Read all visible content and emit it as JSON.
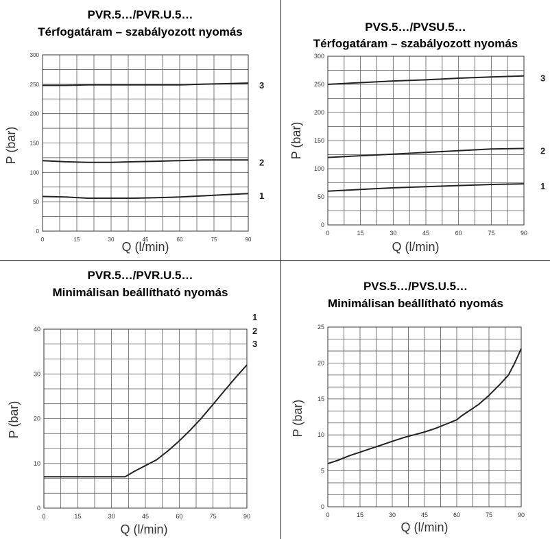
{
  "panels": [
    {
      "title_line1": "PVR.5…/PVR.U.5…",
      "title_line2": "Térfogatáram – szabályozott nyomás"
    },
    {
      "title_line1": "PVS.5…/PVSU.5…",
      "title_line2": "Térfogatáram – szabályozott nyomás"
    },
    {
      "title_line1": "PVR.5…/PVR.U.5…",
      "title_line2": "Minimálisan beállítható nyomás"
    },
    {
      "title_line1": "PVS.5…/PVS.U.5…",
      "title_line2": "Minimálisan beállítható nyomás"
    }
  ],
  "chart_data": [
    {
      "type": "line",
      "title": "PVR.5…/PVR.U.5… Térfogatáram – szabályozott nyomás",
      "xlabel": "Q (l/min)",
      "ylabel": "P (bar)",
      "xlim": [
        0,
        90
      ],
      "ylim": [
        0,
        300
      ],
      "xticks": [
        "0",
        "15",
        "30",
        "45",
        "60",
        "75",
        "90"
      ],
      "yticks": [
        "0",
        "50",
        "100",
        "150",
        "200",
        "250",
        "300"
      ],
      "grid": true,
      "series": [
        {
          "name": "1",
          "x": [
            0,
            10,
            20,
            30,
            40,
            50,
            60,
            70,
            80,
            90
          ],
          "values": [
            59,
            58,
            56,
            56,
            56,
            57,
            58,
            60,
            62,
            64
          ]
        },
        {
          "name": "2",
          "x": [
            0,
            10,
            20,
            30,
            40,
            50,
            60,
            70,
            80,
            90
          ],
          "values": [
            120,
            118,
            117,
            117,
            118,
            119,
            120,
            121,
            121,
            121
          ]
        },
        {
          "name": "3",
          "x": [
            0,
            10,
            20,
            30,
            40,
            50,
            60,
            70,
            80,
            90
          ],
          "values": [
            248,
            248,
            249,
            249,
            249,
            249,
            249,
            250,
            251,
            252
          ]
        }
      ]
    },
    {
      "type": "line",
      "title": "PVS.5…/PVSU.5… Térfogatáram – szabályozott nyomás",
      "xlabel": "Q (l/min)",
      "ylabel": "P (bar)",
      "xlim": [
        0,
        90
      ],
      "ylim": [
        0,
        300
      ],
      "xticks": [
        "0",
        "15",
        "30",
        "45",
        "60",
        "75",
        "90"
      ],
      "yticks": [
        "0",
        "50",
        "100",
        "150",
        "200",
        "250",
        "300"
      ],
      "grid": true,
      "series": [
        {
          "name": "1",
          "x": [
            0,
            15,
            30,
            45,
            60,
            75,
            90
          ],
          "values": [
            60,
            63,
            66,
            68,
            70,
            72,
            73
          ]
        },
        {
          "name": "2",
          "x": [
            0,
            15,
            30,
            45,
            60,
            75,
            90
          ],
          "values": [
            120,
            123,
            126,
            129,
            132,
            135,
            136
          ]
        },
        {
          "name": "3",
          "x": [
            0,
            15,
            30,
            45,
            60,
            75,
            90
          ],
          "values": [
            250,
            253,
            256,
            258,
            261,
            263,
            265
          ]
        }
      ]
    },
    {
      "type": "line",
      "title": "PVR.5…/PVR.U.5… Minimálisan beállítható nyomás",
      "xlabel": "Q (l/min)",
      "ylabel": "P (bar)",
      "xlim": [
        0,
        90
      ],
      "ylim": [
        0,
        40
      ],
      "xticks": [
        "0",
        "15",
        "30",
        "45",
        "60",
        "75",
        "90"
      ],
      "yticks": [
        "0",
        "10",
        "20",
        "30",
        "40"
      ],
      "legend_labels": [
        "1",
        "2",
        "3"
      ],
      "grid": true,
      "series": [
        {
          "x": [
            0,
            34,
            36,
            40,
            45,
            50,
            55,
            60,
            65,
            70,
            75,
            80,
            85,
            90
          ],
          "values": [
            7,
            7,
            7,
            8.2,
            9.5,
            10.8,
            12.8,
            15,
            17.5,
            20.2,
            23.2,
            26.2,
            29.2,
            32
          ]
        }
      ]
    },
    {
      "type": "line",
      "title": "PVS.5…/PVS.U.5… Minimálisan beállítható nyomás",
      "xlabel": "Q (l/min)",
      "ylabel": "P (bar)",
      "xlim": [
        0,
        90
      ],
      "ylim": [
        0,
        25
      ],
      "xticks": [
        "0",
        "15",
        "30",
        "45",
        "60",
        "75",
        "90"
      ],
      "yticks": [
        "0",
        "5",
        "10",
        "15",
        "20",
        "25"
      ],
      "grid": true,
      "series": [
        {
          "x": [
            0,
            5,
            10,
            15,
            20,
            25,
            30,
            35,
            40,
            45,
            50,
            55,
            60,
            62,
            65,
            70,
            75,
            80,
            84,
            87,
            90
          ],
          "values": [
            6,
            6.5,
            7.1,
            7.6,
            8.1,
            8.6,
            9.1,
            9.6,
            10,
            10.4,
            10.9,
            11.5,
            12.1,
            12.6,
            13.2,
            14.2,
            15.5,
            17,
            18.3,
            20,
            22
          ]
        }
      ]
    }
  ]
}
